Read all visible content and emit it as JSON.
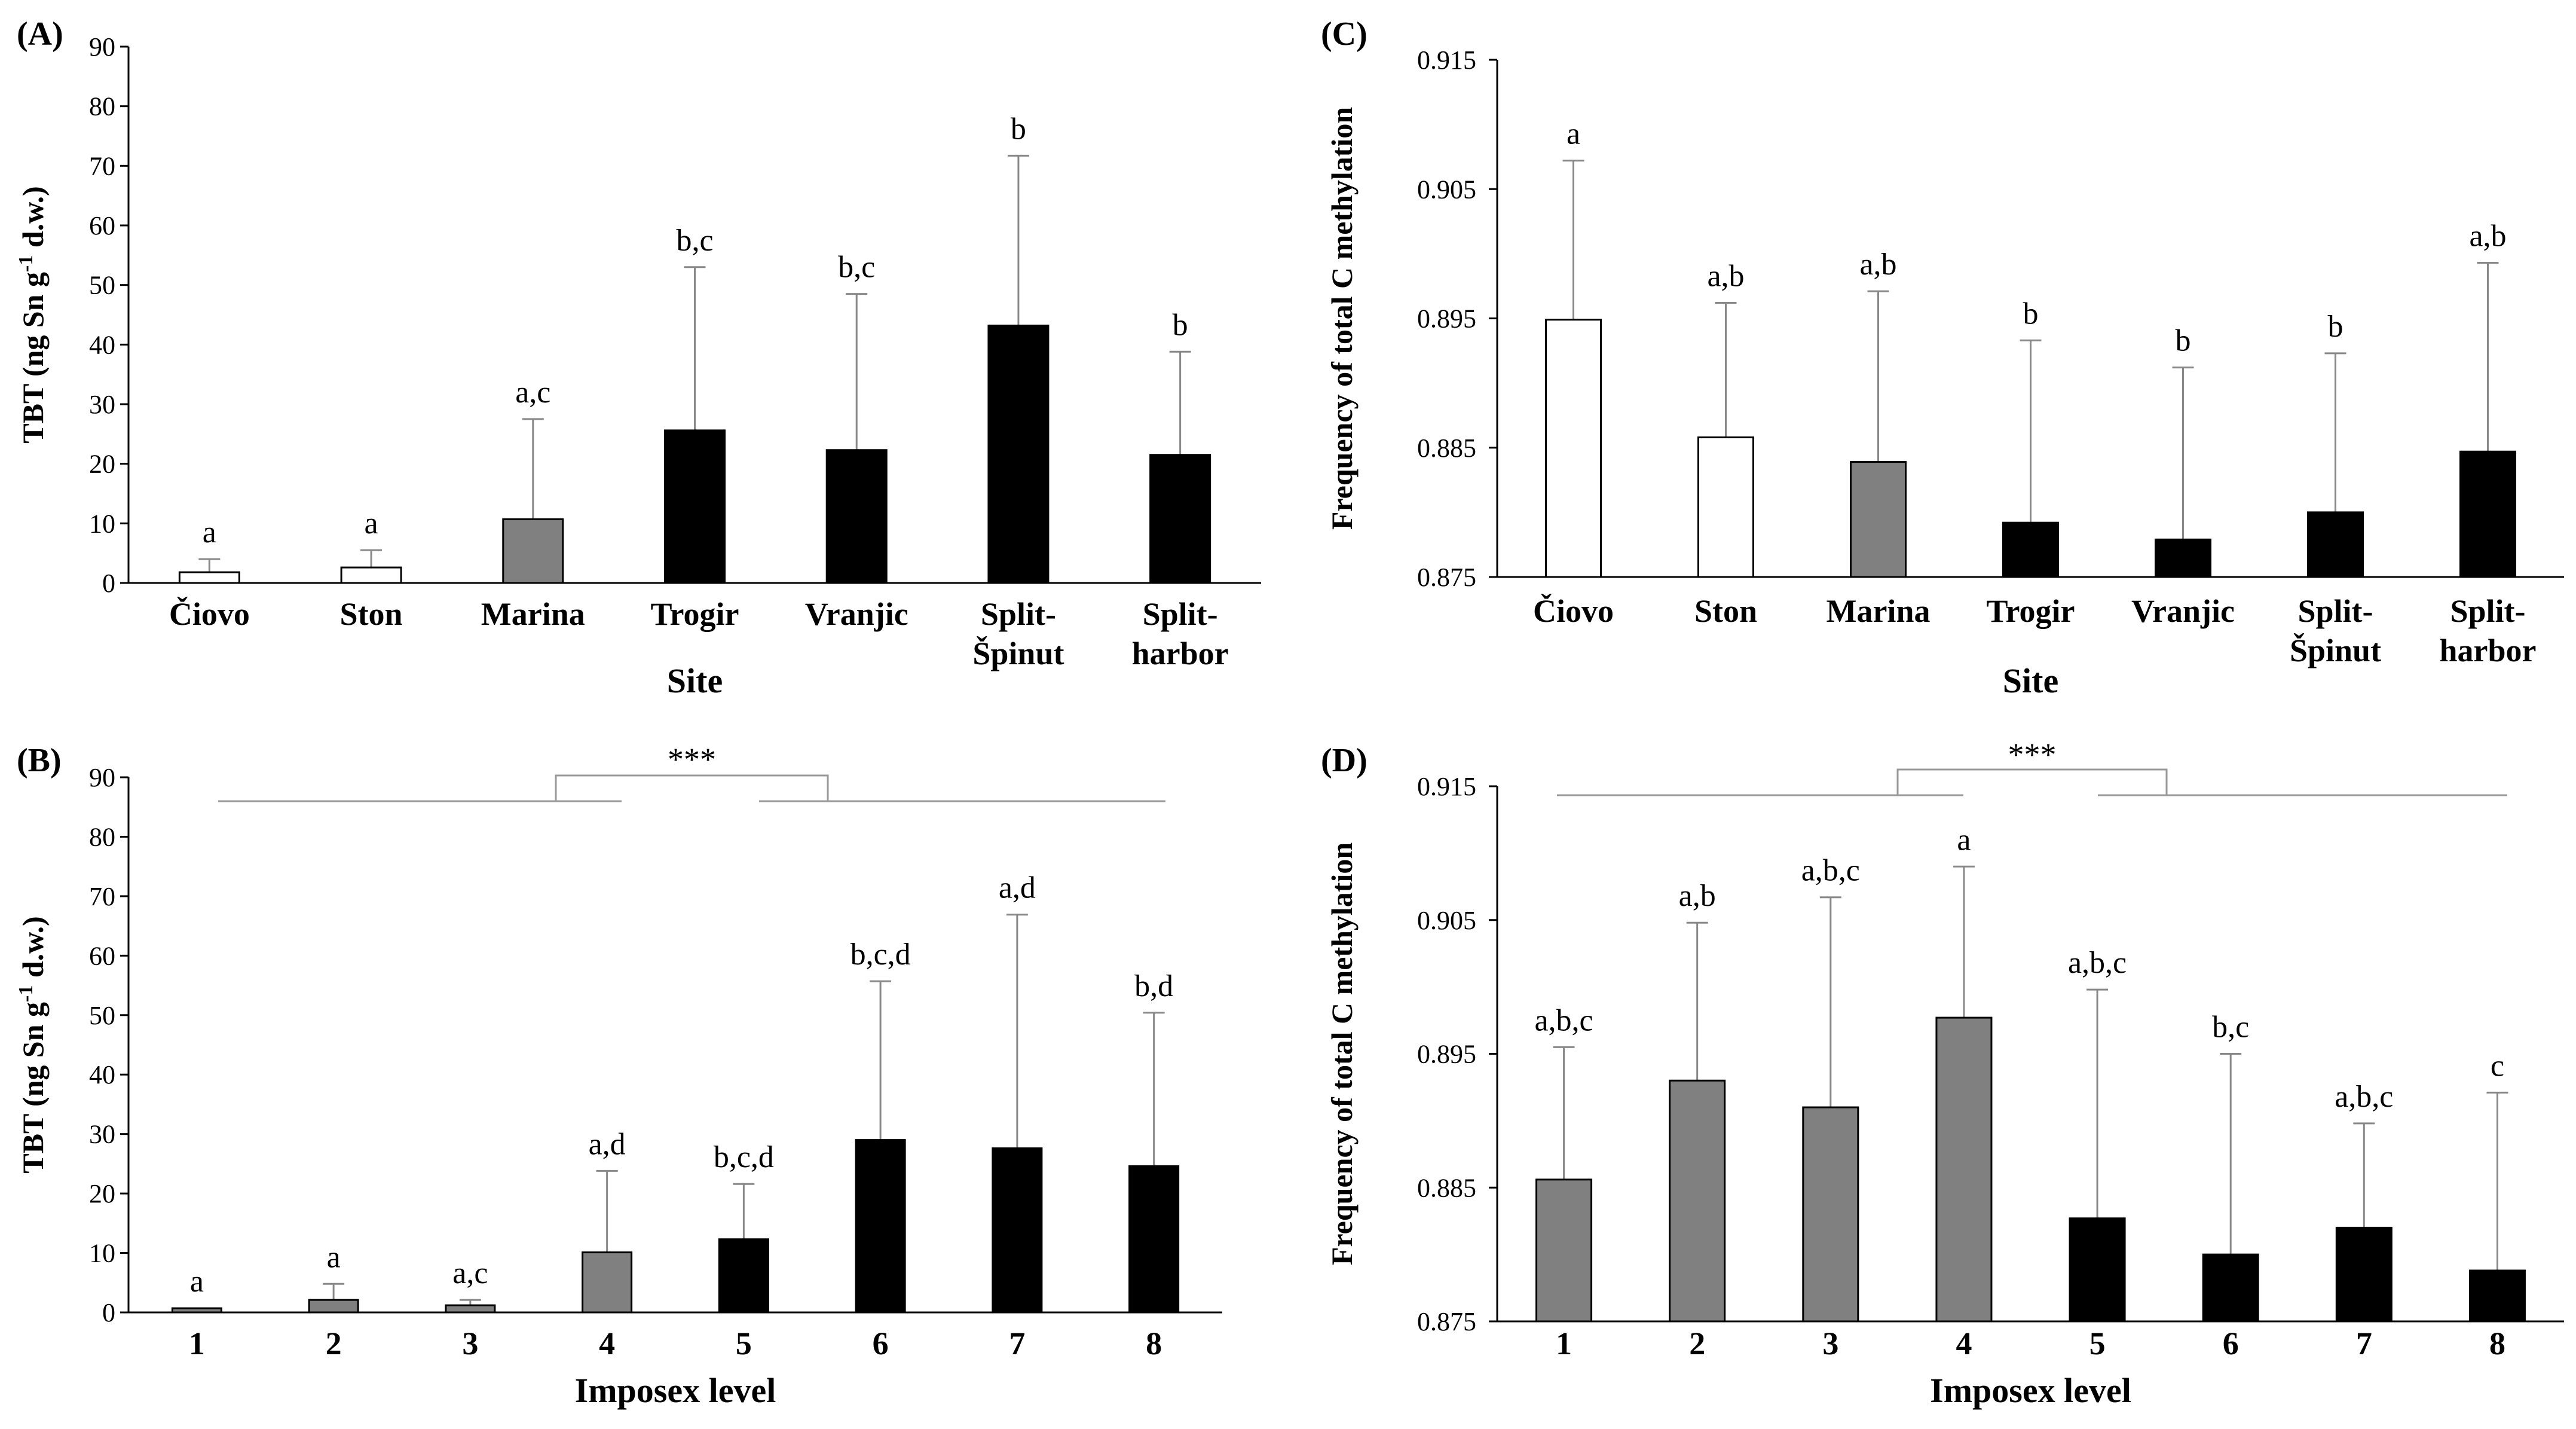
{
  "colors": {
    "none": "#ffffff",
    "intermediate": "#808080",
    "high": "#000000",
    "error_bar": "#888888"
  },
  "chart_data": [
    {
      "id": "A",
      "panel_label": "(A)",
      "type": "bar",
      "ylabel_parts": [
        "TBT (ng Sn g",
        "-1",
        " d.w.)"
      ],
      "xlabel": "Site",
      "ylim": [
        0,
        90
      ],
      "yticks": [
        "0",
        "10",
        "20",
        "30",
        "40",
        "50",
        "60",
        "70",
        "80",
        "90"
      ],
      "categories": [
        [
          "Čiovo"
        ],
        [
          "Ston"
        ],
        [
          "Marina"
        ],
        [
          "Trogir"
        ],
        [
          "Vranjic"
        ],
        [
          "Split-",
          "Špinut"
        ],
        [
          "Split-",
          "harbor"
        ]
      ],
      "values": [
        1.8,
        2.6,
        10.7,
        25.6,
        22.3,
        43.2,
        21.5
      ],
      "errors": [
        2.2,
        2.9,
        16.8,
        27.4,
        26.2,
        28.5,
        17.3
      ],
      "significance": [
        "a",
        "a",
        "a,c",
        "b,c",
        "b,c",
        "b",
        "b"
      ],
      "fills": [
        "none",
        "none",
        "intermediate",
        "high",
        "high",
        "high",
        "high"
      ]
    },
    {
      "id": "B",
      "panel_label": "(B)",
      "type": "bar",
      "ylabel_parts": [
        "TBT (ng Sn g",
        "-1",
        " d.w.)"
      ],
      "xlabel": "Imposex level",
      "ylim": [
        0,
        90
      ],
      "yticks": [
        "0",
        "10",
        "20",
        "30",
        "40",
        "50",
        "60",
        "70",
        "80",
        "90"
      ],
      "categories": [
        [
          "1"
        ],
        [
          "2"
        ],
        [
          "3"
        ],
        [
          "4"
        ],
        [
          "5"
        ],
        [
          "6"
        ],
        [
          "7"
        ],
        [
          "8"
        ]
      ],
      "values": [
        0.7,
        2.1,
        1.2,
        10.1,
        12.3,
        29.0,
        27.6,
        24.6
      ],
      "errors": [
        0.0,
        2.7,
        0.9,
        13.7,
        9.3,
        26.7,
        39.3,
        25.8
      ],
      "significance": [
        "a",
        "a",
        "a,c",
        "a,d",
        "b,c,d",
        "b,c,d",
        "a,d",
        "b,d"
      ],
      "fills": [
        "intermediate",
        "intermediate",
        "intermediate",
        "intermediate",
        "high",
        "high",
        "high",
        "high"
      ],
      "group_annotation": "***"
    },
    {
      "id": "C",
      "panel_label": "(C)",
      "type": "bar",
      "ylabel_parts": [
        "Frequency of total C methylation"
      ],
      "xlabel": "Site",
      "ylim": [
        0.875,
        0.915
      ],
      "yticks": [
        "0.875",
        "0.885",
        "0.895",
        "0.905",
        "0.915"
      ],
      "categories": [
        [
          "Čiovo"
        ],
        [
          "Ston"
        ],
        [
          "Marina"
        ],
        [
          "Trogir"
        ],
        [
          "Vranjic"
        ],
        [
          "Split-",
          "Špinut"
        ],
        [
          "Split-",
          "harbor"
        ]
      ],
      "values": [
        0.8949,
        0.8858,
        0.8839,
        0.8792,
        0.8779,
        0.88,
        0.8847
      ],
      "errors": [
        0.0123,
        0.0104,
        0.0132,
        0.0141,
        0.0133,
        0.0123,
        0.0146
      ],
      "significance": [
        "a",
        "a,b",
        "a,b",
        "b",
        "b",
        "b",
        "a,b"
      ],
      "fills": [
        "none",
        "none",
        "intermediate",
        "high",
        "high",
        "high",
        "high"
      ]
    },
    {
      "id": "D",
      "panel_label": "(D)",
      "type": "bar",
      "ylabel_parts": [
        "Frequency of total C methylation"
      ],
      "xlabel": "Imposex level",
      "ylim": [
        0.875,
        0.915
      ],
      "yticks": [
        "0.875",
        "0.885",
        "0.895",
        "0.905",
        "0.915"
      ],
      "categories": [
        [
          "1"
        ],
        [
          "2"
        ],
        [
          "3"
        ],
        [
          "4"
        ],
        [
          "5"
        ],
        [
          "6"
        ],
        [
          "7"
        ],
        [
          "8"
        ]
      ],
      "values": [
        0.8856,
        0.893,
        0.891,
        0.8977,
        0.8827,
        0.88,
        0.882,
        0.8788
      ],
      "errors": [
        0.0099,
        0.0118,
        0.0157,
        0.0113,
        0.0171,
        0.015,
        0.0078,
        0.0133
      ],
      "significance": [
        "a,b,c",
        "a,b",
        "a,b,c",
        "a",
        "a,b,c",
        "b,c",
        "a,b,c",
        "c"
      ],
      "fills": [
        "intermediate",
        "intermediate",
        "intermediate",
        "intermediate",
        "high",
        "high",
        "high",
        "high"
      ],
      "group_annotation": "***"
    }
  ]
}
